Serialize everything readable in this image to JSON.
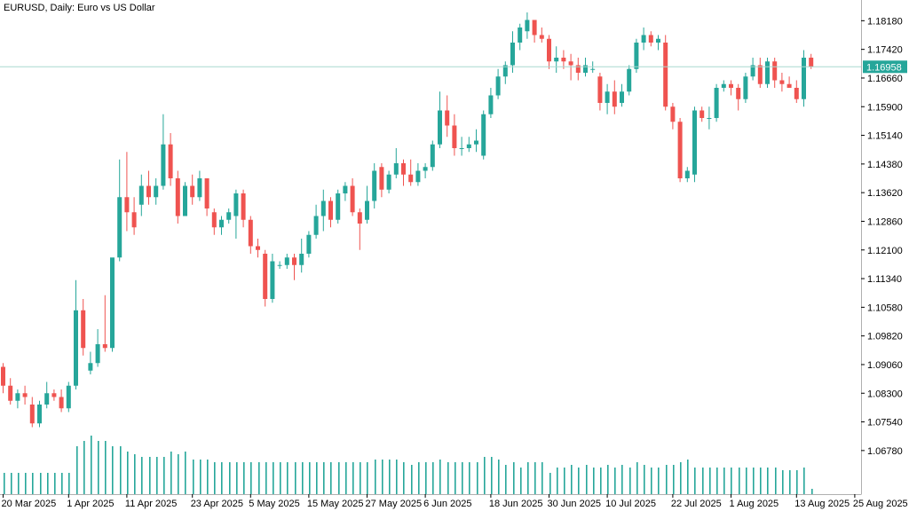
{
  "header": {
    "symbol": "EURUSD",
    "timeframe": "Daily",
    "description": "Euro vs US Dollar",
    "title": "EURUSD, Daily:  Euro vs US Dollar"
  },
  "colors": {
    "bull": "#26a69a",
    "bear": "#ef5350",
    "price_line": "#a8d8cf",
    "price_label_bg": "#26a69a",
    "volume": "#26a69a",
    "axis": "#000000",
    "frame": "#b0b0b0"
  },
  "chart_data": {
    "type": "candlestick",
    "title": "EURUSD, Daily:  Euro vs US Dollar",
    "y_ticks": [
      "1.18180",
      "1.17420",
      "1.16660",
      "1.15900",
      "1.15140",
      "1.14380",
      "1.13620",
      "1.12860",
      "1.12100",
      "1.11340",
      "1.10580",
      "1.09820",
      "1.09060",
      "1.08300",
      "1.07540",
      "1.06780"
    ],
    "ylim": [
      1.064,
      1.184
    ],
    "x_labels": [
      "20 Mar 2025",
      "1 Apr 2025",
      "11 Apr 2025",
      "23 Apr 2025",
      "5 May 2025",
      "15 May 2025",
      "27 May 2025",
      "6 Jun 2025",
      "18 Jun 2025",
      "30 Jun 2025",
      "10 Jul 2025",
      "22 Jul 2025",
      "1 Aug 2025",
      "13 Aug 2025",
      "25 Aug 2025"
    ],
    "x_label_bar_index": [
      0,
      9,
      17,
      26,
      34,
      42,
      50,
      58,
      67,
      75,
      83,
      92,
      100,
      109,
      117
    ],
    "current_price": "1.16958",
    "candles": [
      {
        "o": 1.09,
        "h": 1.091,
        "l": 1.083,
        "c": 1.085,
        "v": 0.4
      },
      {
        "o": 1.085,
        "h": 1.087,
        "l": 1.08,
        "c": 1.081,
        "v": 0.4
      },
      {
        "o": 1.081,
        "h": 1.084,
        "l": 1.079,
        "c": 1.083,
        "v": 0.4
      },
      {
        "o": 1.083,
        "h": 1.085,
        "l": 1.08,
        "c": 1.082,
        "v": 0.4
      },
      {
        "o": 1.08,
        "h": 1.082,
        "l": 1.074,
        "c": 1.075,
        "v": 0.4
      },
      {
        "o": 1.075,
        "h": 1.081,
        "l": 1.074,
        "c": 1.08,
        "v": 0.4
      },
      {
        "o": 1.08,
        "h": 1.086,
        "l": 1.079,
        "c": 1.083,
        "v": 0.4
      },
      {
        "o": 1.083,
        "h": 1.084,
        "l": 1.081,
        "c": 1.082,
        "v": 0.4
      },
      {
        "o": 1.082,
        "h": 1.084,
        "l": 1.078,
        "c": 1.079,
        "v": 0.4
      },
      {
        "o": 1.079,
        "h": 1.086,
        "l": 1.078,
        "c": 1.085,
        "v": 0.4
      },
      {
        "o": 1.085,
        "h": 1.113,
        "l": 1.084,
        "c": 1.105,
        "v": 0.9
      },
      {
        "o": 1.105,
        "h": 1.108,
        "l": 1.093,
        "c": 1.095,
        "v": 1.0
      },
      {
        "o": 1.089,
        "h": 1.094,
        "l": 1.088,
        "c": 1.091,
        "v": 1.1
      },
      {
        "o": 1.091,
        "h": 1.1,
        "l": 1.09,
        "c": 1.096,
        "v": 1.0
      },
      {
        "o": 1.096,
        "h": 1.109,
        "l": 1.094,
        "c": 1.095,
        "v": 1.0
      },
      {
        "o": 1.095,
        "h": 1.118,
        "l": 1.094,
        "c": 1.119,
        "v": 0.9
      },
      {
        "o": 1.119,
        "h": 1.145,
        "l": 1.118,
        "c": 1.135,
        "v": 0.9
      },
      {
        "o": 1.135,
        "h": 1.147,
        "l": 1.126,
        "c": 1.131,
        "v": 0.8
      },
      {
        "o": 1.131,
        "h": 1.135,
        "l": 1.125,
        "c": 1.127,
        "v": 0.75
      },
      {
        "o": 1.133,
        "h": 1.141,
        "l": 1.13,
        "c": 1.138,
        "v": 0.7
      },
      {
        "o": 1.138,
        "h": 1.142,
        "l": 1.133,
        "c": 1.135,
        "v": 0.7
      },
      {
        "o": 1.135,
        "h": 1.14,
        "l": 1.133,
        "c": 1.138,
        "v": 0.7
      },
      {
        "o": 1.138,
        "h": 1.157,
        "l": 1.137,
        "c": 1.149,
        "v": 0.7
      },
      {
        "o": 1.149,
        "h": 1.152,
        "l": 1.138,
        "c": 1.14,
        "v": 0.8
      },
      {
        "o": 1.14,
        "h": 1.142,
        "l": 1.128,
        "c": 1.13,
        "v": 0.75
      },
      {
        "o": 1.13,
        "h": 1.139,
        "l": 1.13,
        "c": 1.138,
        "v": 0.8
      },
      {
        "o": 1.138,
        "h": 1.141,
        "l": 1.133,
        "c": 1.135,
        "v": 0.65
      },
      {
        "o": 1.135,
        "h": 1.142,
        "l": 1.134,
        "c": 1.14,
        "v": 0.65
      },
      {
        "o": 1.14,
        "h": 1.14,
        "l": 1.13,
        "c": 1.132,
        "v": 0.65
      },
      {
        "o": 1.131,
        "h": 1.132,
        "l": 1.125,
        "c": 1.127,
        "v": 0.6
      },
      {
        "o": 1.127,
        "h": 1.13,
        "l": 1.125,
        "c": 1.129,
        "v": 0.6
      },
      {
        "o": 1.129,
        "h": 1.132,
        "l": 1.128,
        "c": 1.131,
        "v": 0.6
      },
      {
        "o": 1.13,
        "h": 1.137,
        "l": 1.124,
        "c": 1.136,
        "v": 0.6
      },
      {
        "o": 1.136,
        "h": 1.137,
        "l": 1.127,
        "c": 1.129,
        "v": 0.6
      },
      {
        "o": 1.129,
        "h": 1.13,
        "l": 1.12,
        "c": 1.122,
        "v": 0.6
      },
      {
        "o": 1.122,
        "h": 1.124,
        "l": 1.119,
        "c": 1.121,
        "v": 0.6
      },
      {
        "o": 1.12,
        "h": 1.121,
        "l": 1.106,
        "c": 1.108,
        "v": 0.6
      },
      {
        "o": 1.108,
        "h": 1.12,
        "l": 1.107,
        "c": 1.118,
        "v": 0.6
      },
      {
        "o": 1.117,
        "h": 1.118,
        "l": 1.116,
        "c": 1.117,
        "v": 0.6
      },
      {
        "o": 1.117,
        "h": 1.12,
        "l": 1.116,
        "c": 1.119,
        "v": 0.6
      },
      {
        "o": 1.119,
        "h": 1.12,
        "l": 1.113,
        "c": 1.117,
        "v": 0.6
      },
      {
        "o": 1.117,
        "h": 1.124,
        "l": 1.115,
        "c": 1.12,
        "v": 0.6
      },
      {
        "o": 1.12,
        "h": 1.126,
        "l": 1.119,
        "c": 1.125,
        "v": 0.6
      },
      {
        "o": 1.125,
        "h": 1.133,
        "l": 1.124,
        "c": 1.13,
        "v": 0.6
      },
      {
        "o": 1.13,
        "h": 1.137,
        "l": 1.126,
        "c": 1.134,
        "v": 0.6
      },
      {
        "o": 1.134,
        "h": 1.135,
        "l": 1.127,
        "c": 1.129,
        "v": 0.6
      },
      {
        "o": 1.129,
        "h": 1.137,
        "l": 1.128,
        "c": 1.136,
        "v": 0.6
      },
      {
        "o": 1.136,
        "h": 1.139,
        "l": 1.134,
        "c": 1.138,
        "v": 0.6
      },
      {
        "o": 1.138,
        "h": 1.14,
        "l": 1.13,
        "c": 1.131,
        "v": 0.6
      },
      {
        "o": 1.131,
        "h": 1.132,
        "l": 1.121,
        "c": 1.128,
        "v": 0.6
      },
      {
        "o": 1.129,
        "h": 1.138,
        "l": 1.128,
        "c": 1.134,
        "v": 0.6
      },
      {
        "o": 1.134,
        "h": 1.144,
        "l": 1.132,
        "c": 1.142,
        "v": 0.65
      },
      {
        "o": 1.143,
        "h": 1.144,
        "l": 1.135,
        "c": 1.137,
        "v": 0.65
      },
      {
        "o": 1.137,
        "h": 1.142,
        "l": 1.136,
        "c": 1.141,
        "v": 0.65
      },
      {
        "o": 1.141,
        "h": 1.148,
        "l": 1.14,
        "c": 1.144,
        "v": 0.65
      },
      {
        "o": 1.144,
        "h": 1.145,
        "l": 1.138,
        "c": 1.141,
        "v": 0.6
      },
      {
        "o": 1.141,
        "h": 1.145,
        "l": 1.138,
        "c": 1.139,
        "v": 0.55
      },
      {
        "o": 1.139,
        "h": 1.144,
        "l": 1.138,
        "c": 1.142,
        "v": 0.6
      },
      {
        "o": 1.142,
        "h": 1.144,
        "l": 1.14,
        "c": 1.143,
        "v": 0.6
      },
      {
        "o": 1.143,
        "h": 1.15,
        "l": 1.142,
        "c": 1.149,
        "v": 0.6
      },
      {
        "o": 1.149,
        "h": 1.163,
        "l": 1.148,
        "c": 1.158,
        "v": 0.65
      },
      {
        "o": 1.158,
        "h": 1.162,
        "l": 1.151,
        "c": 1.154,
        "v": 0.6
      },
      {
        "o": 1.154,
        "h": 1.157,
        "l": 1.146,
        "c": 1.148,
        "v": 0.6
      },
      {
        "o": 1.148,
        "h": 1.151,
        "l": 1.146,
        "c": 1.148,
        "v": 0.6
      },
      {
        "o": 1.148,
        "h": 1.151,
        "l": 1.147,
        "c": 1.149,
        "v": 0.6
      },
      {
        "o": 1.149,
        "h": 1.153,
        "l": 1.147,
        "c": 1.15,
        "v": 0.6
      },
      {
        "o": 1.146,
        "h": 1.158,
        "l": 1.145,
        "c": 1.157,
        "v": 0.7
      },
      {
        "o": 1.157,
        "h": 1.164,
        "l": 1.156,
        "c": 1.162,
        "v": 0.7
      },
      {
        "o": 1.162,
        "h": 1.169,
        "l": 1.161,
        "c": 1.167,
        "v": 0.65
      },
      {
        "o": 1.167,
        "h": 1.171,
        "l": 1.165,
        "c": 1.17,
        "v": 0.55
      },
      {
        "o": 1.17,
        "h": 1.179,
        "l": 1.168,
        "c": 1.176,
        "v": 0.6
      },
      {
        "o": 1.176,
        "h": 1.181,
        "l": 1.174,
        "c": 1.18,
        "v": 0.5
      },
      {
        "o": 1.179,
        "h": 1.184,
        "l": 1.177,
        "c": 1.182,
        "v": 0.6
      },
      {
        "o": 1.182,
        "h": 1.182,
        "l": 1.176,
        "c": 1.178,
        "v": 0.6
      },
      {
        "o": 1.178,
        "h": 1.18,
        "l": 1.176,
        "c": 1.177,
        "v": 0.6
      },
      {
        "o": 1.177,
        "h": 1.178,
        "l": 1.169,
        "c": 1.171,
        "v": 0.4
      },
      {
        "o": 1.171,
        "h": 1.175,
        "l": 1.168,
        "c": 1.172,
        "v": 0.5
      },
      {
        "o": 1.172,
        "h": 1.174,
        "l": 1.169,
        "c": 1.171,
        "v": 0.5
      },
      {
        "o": 1.171,
        "h": 1.173,
        "l": 1.166,
        "c": 1.17,
        "v": 0.55
      },
      {
        "o": 1.17,
        "h": 1.172,
        "l": 1.166,
        "c": 1.168,
        "v": 0.5
      },
      {
        "o": 1.168,
        "h": 1.172,
        "l": 1.167,
        "c": 1.17,
        "v": 0.55
      },
      {
        "o": 1.169,
        "h": 1.171,
        "l": 1.168,
        "c": 1.169,
        "v": 0.5
      },
      {
        "o": 1.167,
        "h": 1.168,
        "l": 1.158,
        "c": 1.16,
        "v": 0.5
      },
      {
        "o": 1.16,
        "h": 1.165,
        "l": 1.157,
        "c": 1.163,
        "v": 0.55
      },
      {
        "o": 1.163,
        "h": 1.166,
        "l": 1.157,
        "c": 1.159,
        "v": 0.5
      },
      {
        "o": 1.16,
        "h": 1.165,
        "l": 1.159,
        "c": 1.163,
        "v": 0.55
      },
      {
        "o": 1.163,
        "h": 1.17,
        "l": 1.162,
        "c": 1.169,
        "v": 0.5
      },
      {
        "o": 1.169,
        "h": 1.177,
        "l": 1.168,
        "c": 1.176,
        "v": 0.6
      },
      {
        "o": 1.176,
        "h": 1.18,
        "l": 1.174,
        "c": 1.178,
        "v": 0.55
      },
      {
        "o": 1.178,
        "h": 1.179,
        "l": 1.175,
        "c": 1.176,
        "v": 0.5
      },
      {
        "o": 1.176,
        "h": 1.178,
        "l": 1.174,
        "c": 1.177,
        "v": 0.5
      },
      {
        "o": 1.176,
        "h": 1.178,
        "l": 1.158,
        "c": 1.159,
        "v": 0.55
      },
      {
        "o": 1.159,
        "h": 1.16,
        "l": 1.153,
        "c": 1.155,
        "v": 0.55
      },
      {
        "o": 1.155,
        "h": 1.156,
        "l": 1.139,
        "c": 1.14,
        "v": 0.6
      },
      {
        "o": 1.14,
        "h": 1.143,
        "l": 1.139,
        "c": 1.142,
        "v": 0.65
      },
      {
        "o": 1.141,
        "h": 1.159,
        "l": 1.139,
        "c": 1.158,
        "v": 0.5
      },
      {
        "o": 1.158,
        "h": 1.159,
        "l": 1.155,
        "c": 1.156,
        "v": 0.5
      },
      {
        "o": 1.156,
        "h": 1.159,
        "l": 1.153,
        "c": 1.156,
        "v": 0.5
      },
      {
        "o": 1.156,
        "h": 1.165,
        "l": 1.155,
        "c": 1.164,
        "v": 0.5
      },
      {
        "o": 1.164,
        "h": 1.166,
        "l": 1.163,
        "c": 1.165,
        "v": 0.5
      },
      {
        "o": 1.165,
        "h": 1.166,
        "l": 1.162,
        "c": 1.164,
        "v": 0.5
      },
      {
        "o": 1.164,
        "h": 1.165,
        "l": 1.158,
        "c": 1.161,
        "v": 0.5
      },
      {
        "o": 1.161,
        "h": 1.168,
        "l": 1.16,
        "c": 1.167,
        "v": 0.5
      },
      {
        "o": 1.167,
        "h": 1.172,
        "l": 1.166,
        "c": 1.17,
        "v": 0.5
      },
      {
        "o": 1.17,
        "h": 1.172,
        "l": 1.164,
        "c": 1.165,
        "v": 0.5
      },
      {
        "o": 1.165,
        "h": 1.172,
        "l": 1.164,
        "c": 1.171,
        "v": 0.5
      },
      {
        "o": 1.171,
        "h": 1.172,
        "l": 1.164,
        "c": 1.166,
        "v": 0.5
      },
      {
        "o": 1.166,
        "h": 1.168,
        "l": 1.163,
        "c": 1.165,
        "v": 0.45
      },
      {
        "o": 1.165,
        "h": 1.167,
        "l": 1.164,
        "c": 1.164,
        "v": 0.45
      },
      {
        "o": 1.164,
        "h": 1.166,
        "l": 1.16,
        "c": 1.161,
        "v": 0.45
      },
      {
        "o": 1.161,
        "h": 1.174,
        "l": 1.159,
        "c": 1.172,
        "v": 0.5
      },
      {
        "o": 1.172,
        "h": 1.173,
        "l": 1.169,
        "c": 1.1696,
        "v": 0.1
      }
    ]
  }
}
